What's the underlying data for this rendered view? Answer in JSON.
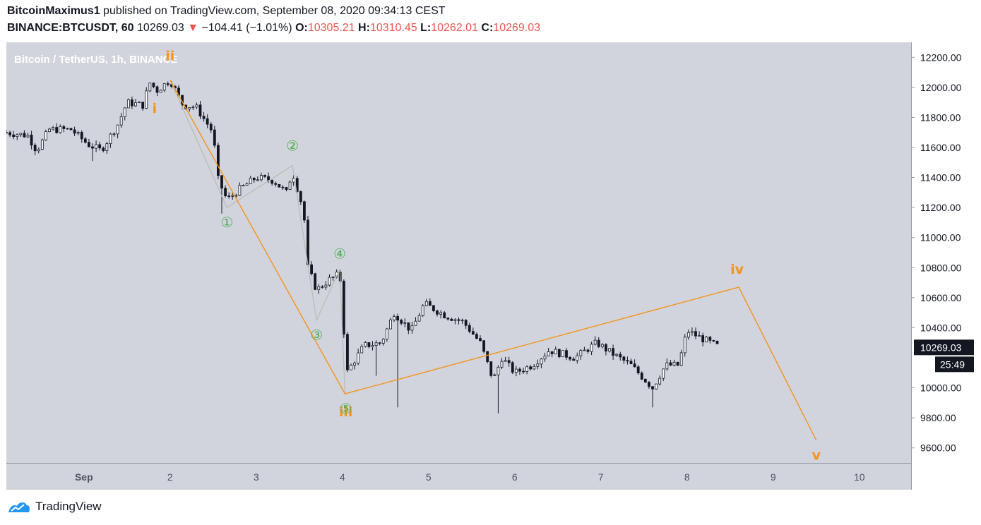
{
  "header": {
    "author": "BitcoinMaximus1",
    "published": "published on TradingView.com, September 08, 2020 09:34:13 CEST",
    "symbol": "BINANCE:BTCUSDT, 60",
    "last": "10269.03",
    "change_arrow": "▼",
    "change": "−104.41 (−1.01%)",
    "o_label": "O:",
    "o": "10305.21",
    "h_label": "H:",
    "h": "10310.45",
    "l_label": "L:",
    "l": "10262.01",
    "c_label": "C:",
    "c": "10269.03"
  },
  "footer": {
    "brand": "TradingView",
    "logo_icon": "tradingview-logo-icon"
  },
  "chart_data": {
    "type": "candlestick",
    "title": "Bitcoin / TetherUS, 1h, BINANCE",
    "ylim": [
      9500,
      12300
    ],
    "xlim": [
      0.1,
      10.6
    ],
    "y_ticks": [
      "12200.00",
      "12000.00",
      "11800.00",
      "11600.00",
      "11400.00",
      "11200.00",
      "11000.00",
      "10800.00",
      "10600.00",
      "10400.00",
      "10000.00",
      "9800.00",
      "9600.00"
    ],
    "x_ticks": [
      {
        "x": 1,
        "label": "Sep"
      },
      {
        "x": 2,
        "label": "2"
      },
      {
        "x": 3,
        "label": "3"
      },
      {
        "x": 4,
        "label": "4"
      },
      {
        "x": 5,
        "label": "5"
      },
      {
        "x": 6,
        "label": "6"
      },
      {
        "x": 7,
        "label": "7"
      },
      {
        "x": 8,
        "label": "8"
      },
      {
        "x": 9,
        "label": "9"
      },
      {
        "x": 10,
        "label": "10"
      }
    ],
    "price_tag": "10269.03",
    "countdown": "25:49",
    "colors": {
      "background": "#d1d4dc",
      "candle_up": "#ffffff",
      "candle_down": "#131722",
      "orange": "#f7931a",
      "green": "#4caf50",
      "sub_wave": "#b8bcb2"
    },
    "anchors": [
      {
        "x": 0.1,
        "v": 11700
      },
      {
        "x": 0.35,
        "v": 11680
      },
      {
        "x": 0.45,
        "v": 11580
      },
      {
        "x": 0.6,
        "v": 11720
      },
      {
        "x": 0.85,
        "v": 11720
      },
      {
        "x": 1.05,
        "v": 11620
      },
      {
        "x": 1.2,
        "v": 11580
      },
      {
        "x": 1.4,
        "v": 11760
      },
      {
        "x": 1.5,
        "v": 11900
      },
      {
        "x": 1.7,
        "v": 11880
      },
      {
        "x": 1.75,
        "v": 12040
      },
      {
        "x": 1.85,
        "v": 11980
      },
      {
        "x": 2.0,
        "v": 12050
      },
      {
        "x": 2.15,
        "v": 11880
      },
      {
        "x": 2.3,
        "v": 11870
      },
      {
        "x": 2.5,
        "v": 11700
      },
      {
        "x": 2.55,
        "v": 11400
      },
      {
        "x": 2.66,
        "v": 11250
      },
      {
        "x": 2.8,
        "v": 11320
      },
      {
        "x": 3.0,
        "v": 11400
      },
      {
        "x": 3.2,
        "v": 11380
      },
      {
        "x": 3.35,
        "v": 11300
      },
      {
        "x": 3.42,
        "v": 11440
      },
      {
        "x": 3.55,
        "v": 11180
      },
      {
        "x": 3.6,
        "v": 10800
      },
      {
        "x": 3.7,
        "v": 10650
      },
      {
        "x": 3.85,
        "v": 10720
      },
      {
        "x": 3.97,
        "v": 10760
      },
      {
        "x": 4.05,
        "v": 10100
      },
      {
        "x": 4.25,
        "v": 10280
      },
      {
        "x": 4.45,
        "v": 10300
      },
      {
        "x": 4.6,
        "v": 10500
      },
      {
        "x": 4.8,
        "v": 10380
      },
      {
        "x": 4.95,
        "v": 10560
      },
      {
        "x": 5.2,
        "v": 10480
      },
      {
        "x": 5.4,
        "v": 10440
      },
      {
        "x": 5.6,
        "v": 10300
      },
      {
        "x": 5.75,
        "v": 10050
      },
      {
        "x": 5.85,
        "v": 10200
      },
      {
        "x": 6.0,
        "v": 10100
      },
      {
        "x": 6.2,
        "v": 10150
      },
      {
        "x": 6.4,
        "v": 10250
      },
      {
        "x": 6.7,
        "v": 10200
      },
      {
        "x": 6.95,
        "v": 10300
      },
      {
        "x": 7.1,
        "v": 10240
      },
      {
        "x": 7.35,
        "v": 10150
      },
      {
        "x": 7.6,
        "v": 10000
      },
      {
        "x": 7.75,
        "v": 10150
      },
      {
        "x": 7.9,
        "v": 10150
      },
      {
        "x": 8.0,
        "v": 10380
      },
      {
        "x": 8.2,
        "v": 10320
      },
      {
        "x": 8.38,
        "v": 10270
      }
    ],
    "spikes": [
      {
        "x": 1.12,
        "low": 11510
      },
      {
        "x": 2.62,
        "low": 11160
      },
      {
        "x": 4.38,
        "low": 10080
      },
      {
        "x": 4.66,
        "low": 9870
      },
      {
        "x": 5.82,
        "low": 9830
      },
      {
        "x": 7.62,
        "low": 9870
      }
    ],
    "orange_wave": [
      {
        "x": 2.0,
        "v": 12050
      },
      {
        "x": 4.03,
        "v": 9960
      },
      {
        "x": 8.6,
        "v": 10670
      },
      {
        "x": 9.5,
        "v": 9650
      }
    ],
    "green_wave": [
      {
        "x": 2.0,
        "v": 12050
      },
      {
        "x": 2.66,
        "v": 11200
      },
      {
        "x": 3.42,
        "v": 11480
      },
      {
        "x": 3.7,
        "v": 10450
      },
      {
        "x": 3.97,
        "v": 10790
      },
      {
        "x": 4.03,
        "v": 9960
      }
    ],
    "wave_labels": [
      {
        "text": "ii",
        "x": 2.0,
        "v": 12180,
        "color": "orange"
      },
      {
        "text": "i",
        "x": 1.82,
        "v": 11830,
        "color": "orange"
      },
      {
        "text": "iii",
        "x": 4.04,
        "v": 9810,
        "color": "orange"
      },
      {
        "text": "iv",
        "x": 8.58,
        "v": 10760,
        "color": "orange"
      },
      {
        "text": "v",
        "x": 9.5,
        "v": 9520,
        "color": "orange"
      },
      {
        "text": "①",
        "x": 2.66,
        "v": 11070,
        "color": "green"
      },
      {
        "text": "②",
        "x": 3.42,
        "v": 11580,
        "color": "green"
      },
      {
        "text": "③",
        "x": 3.7,
        "v": 10320,
        "color": "green"
      },
      {
        "text": "④",
        "x": 3.97,
        "v": 10860,
        "color": "green"
      },
      {
        "text": "⑤",
        "x": 4.04,
        "v": 9830,
        "color": "green"
      }
    ]
  }
}
